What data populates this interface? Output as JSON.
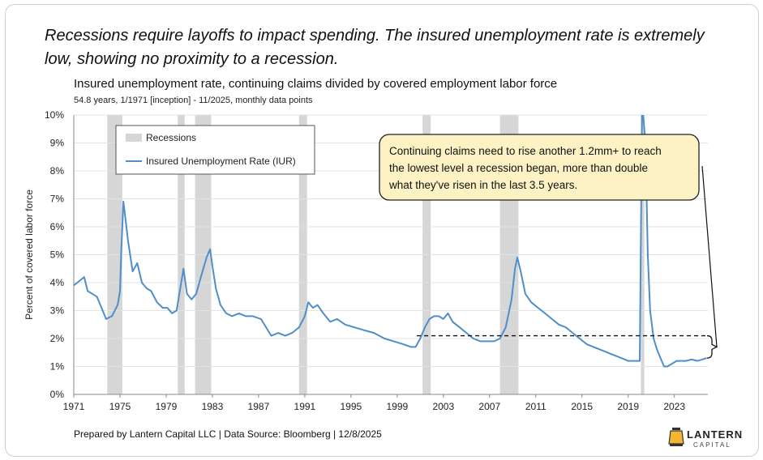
{
  "headline": "Recessions require layoffs to impact spending. The insured unemployment rate is extremely low, showing no proximity to a recession.",
  "footer": "Prepared by Lantern Capital LLC | Data Source: Bloomberg | 12/8/2025",
  "logo": {
    "name": "LANTERN",
    "sub": "CAPITAL"
  },
  "colors": {
    "line": "#4f8ec9",
    "recession": "#d6d6d6",
    "callout_bg": "#fdf2c4",
    "callout_border": "#222222"
  },
  "chart_data": {
    "type": "line",
    "title": "Insured unemployment rate, continuing claims divided by covered employment labor force",
    "subtitle": "54.8 years, 1/1971 [inception] - 11/2025, monthly data points",
    "ylabel": "Percent of covered labor force",
    "xlabel": "",
    "ylim": [
      0,
      10
    ],
    "xlim": [
      1971,
      2025.9
    ],
    "yticks": [
      "0%",
      "1%",
      "2%",
      "3%",
      "4%",
      "5%",
      "6%",
      "7%",
      "8%",
      "9%",
      "10%"
    ],
    "xticks": [
      "1971",
      "1975",
      "1979",
      "1983",
      "1987",
      "1991",
      "1995",
      "1999",
      "2003",
      "2007",
      "2011",
      "2015",
      "2019",
      "2023"
    ],
    "grid": true,
    "legend": {
      "position": "top-left",
      "recessions_label": "Recessions",
      "series_label": "Insured Unemployment Rate (IUR)"
    },
    "recessions": [
      [
        1973.9,
        1975.2
      ],
      [
        1980.0,
        1980.6
      ],
      [
        1981.5,
        1982.9
      ],
      [
        1990.5,
        1991.2
      ],
      [
        2001.2,
        2001.9
      ],
      [
        2007.9,
        2009.5
      ],
      [
        2020.1,
        2020.4
      ]
    ],
    "series": [
      {
        "name": "Insured Unemployment Rate (IUR)",
        "x": [
          1971.0,
          1971.3,
          1971.6,
          1971.9,
          1972.2,
          1972.6,
          1973.0,
          1973.4,
          1973.8,
          1974.3,
          1974.8,
          1975.0,
          1975.1,
          1975.3,
          1975.7,
          1976.1,
          1976.5,
          1976.9,
          1977.3,
          1977.7,
          1978.2,
          1978.7,
          1979.1,
          1979.5,
          1979.9,
          1980.3,
          1980.5,
          1980.8,
          1981.2,
          1981.6,
          1982.0,
          1982.5,
          1982.8,
          1983.0,
          1983.3,
          1983.7,
          1984.2,
          1984.7,
          1985.3,
          1985.9,
          1986.5,
          1987.2,
          1987.8,
          1988.1,
          1988.7,
          1989.3,
          1989.9,
          1990.5,
          1991.0,
          1991.3,
          1991.7,
          1992.1,
          1992.6,
          1993.2,
          1993.8,
          1994.5,
          1995.3,
          1996.1,
          1997.0,
          1997.9,
          1998.7,
          1999.5,
          2000.2,
          2000.6,
          2001.0,
          2001.4,
          2001.8,
          2002.2,
          2002.6,
          2003.0,
          2003.4,
          2003.8,
          2004.4,
          2005.0,
          2005.6,
          2006.2,
          2006.8,
          2007.4,
          2007.9,
          2008.4,
          2008.9,
          2009.2,
          2009.4,
          2009.7,
          2010.1,
          2010.6,
          2011.2,
          2011.8,
          2012.4,
          2013.0,
          2013.6,
          2014.2,
          2014.8,
          2015.4,
          2016.0,
          2016.6,
          2017.2,
          2017.8,
          2018.4,
          2019.0,
          2019.6,
          2020.0,
          2020.2,
          2020.3,
          2020.5,
          2020.7,
          2020.9,
          2021.2,
          2021.5,
          2021.8,
          2022.1,
          2022.4,
          2022.8,
          2023.2,
          2023.6,
          2024.0,
          2024.5,
          2025.0,
          2025.4,
          2025.8
        ],
        "values": [
          3.9,
          4.0,
          4.1,
          4.2,
          3.7,
          3.6,
          3.5,
          3.1,
          2.7,
          2.8,
          3.2,
          3.7,
          5.0,
          6.9,
          5.5,
          4.4,
          4.7,
          4.0,
          3.8,
          3.7,
          3.3,
          3.1,
          3.1,
          2.9,
          3.0,
          4.0,
          4.5,
          3.6,
          3.4,
          3.6,
          4.2,
          4.9,
          5.2,
          4.6,
          3.8,
          3.2,
          2.9,
          2.8,
          2.9,
          2.8,
          2.8,
          2.7,
          2.3,
          2.1,
          2.2,
          2.1,
          2.2,
          2.4,
          2.8,
          3.3,
          3.1,
          3.2,
          2.9,
          2.6,
          2.7,
          2.5,
          2.4,
          2.3,
          2.2,
          2.0,
          1.9,
          1.8,
          1.7,
          1.7,
          2.0,
          2.4,
          2.7,
          2.8,
          2.8,
          2.7,
          2.9,
          2.6,
          2.4,
          2.2,
          2.0,
          1.9,
          1.9,
          1.9,
          2.0,
          2.4,
          3.4,
          4.5,
          4.9,
          4.4,
          3.6,
          3.3,
          3.1,
          2.9,
          2.7,
          2.5,
          2.4,
          2.2,
          2.0,
          1.8,
          1.7,
          1.6,
          1.5,
          1.4,
          1.3,
          1.2,
          1.2,
          1.2,
          10.0,
          10.0,
          9.0,
          5.0,
          3.0,
          2.0,
          1.6,
          1.3,
          1.0,
          1.0,
          1.1,
          1.2,
          1.2,
          1.2,
          1.25,
          1.2,
          1.25,
          1.3
        ]
      }
    ],
    "annotations": {
      "callout": "Continuing claims need to rise another 1.2mm+ to reach the lowest level a recession began, more than double what they've risen in the last 3.5 years.",
      "dashed_level": 2.1,
      "dashed_from_x": 2000.7,
      "bracket_low": 1.3
    }
  }
}
